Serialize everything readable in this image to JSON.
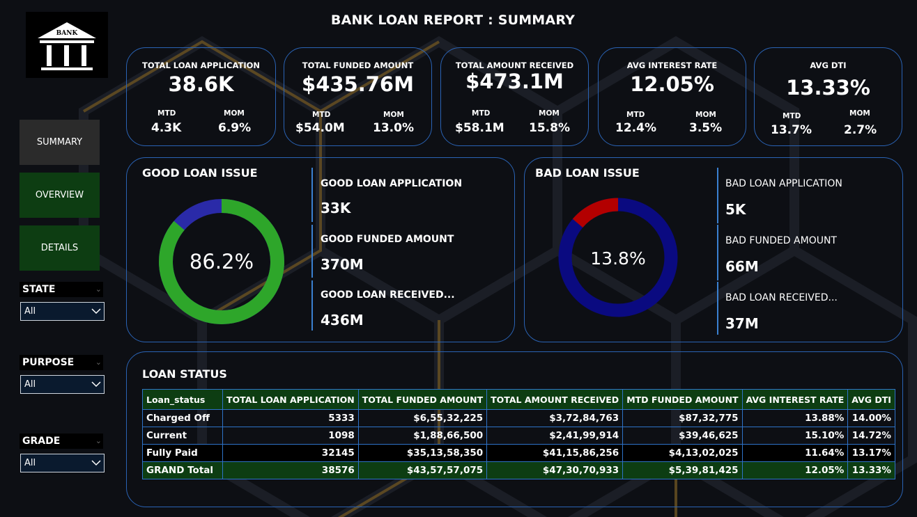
{
  "report": {
    "title": "BANK LOAN REPORT : SUMMARY",
    "logo_text": "BANK"
  },
  "nav": {
    "summary": "SUMMARY",
    "overview": "OVERVIEW",
    "details": "DETAILS"
  },
  "filters": [
    {
      "label": "STATE",
      "value": "All"
    },
    {
      "label": "PURPOSE",
      "value": "All"
    },
    {
      "label": "GRADE",
      "value": "All"
    }
  ],
  "kpis": [
    {
      "title": "TOTAL LOAN APPLICATION",
      "value": "38.6K",
      "mtd_label": "MTD",
      "mtd": "4.3K",
      "mom_label": "MOM",
      "mom": "6.9%"
    },
    {
      "title": "TOTAL FUNDED AMOUNT",
      "value": "$435.76M",
      "mtd_label": "MTD",
      "mtd": "$54.0M",
      "mom_label": "MOM",
      "mom": "13.0%"
    },
    {
      "title": "TOTAL AMOUNT RECEIVED",
      "value": "$473.1M",
      "mtd_label": "MTD",
      "mtd": "$58.1M",
      "mom_label": "MOM",
      "mom": "15.8%"
    },
    {
      "title": "AVG INTEREST RATE",
      "value": "12.05%",
      "mtd_label": "MTD",
      "mtd": "12.4%",
      "mom_label": "MOM",
      "mom": "3.5%"
    },
    {
      "title": "AVG DTI",
      "value": "13.33%",
      "mtd_label": "MTD",
      "mtd": "13.7%",
      "mom_label": "MOM",
      "mom": "2.7%"
    }
  ],
  "good_loan": {
    "title": "GOOD LOAN ISSUE",
    "percent_label": "86.2%",
    "percent": 86.2,
    "colors": {
      "main": "#2ea62a",
      "rest": "#2a2aa8"
    },
    "metrics": [
      {
        "label": "GOOD LOAN APPLICATION",
        "value": "33K"
      },
      {
        "label": "GOOD FUNDED AMOUNT",
        "value": "370M"
      },
      {
        "label": "GOOD LOAN RECEIVED...",
        "value": "436M"
      }
    ]
  },
  "bad_loan": {
    "title": "BAD LOAN ISSUE",
    "percent_label": "13.8%",
    "percent": 13.8,
    "colors": {
      "main": "#b30000",
      "rest": "#0a0a80"
    },
    "metrics": [
      {
        "label": "BAD LOAN APPLICATION",
        "value": "5K"
      },
      {
        "label": "BAD FUNDED AMOUNT",
        "value": "66M"
      },
      {
        "label": "BAD LOAN RECEIVED...",
        "value": "37M"
      }
    ]
  },
  "loan_status": {
    "title": "LOAN STATUS",
    "columns": [
      "Loan_status",
      "TOTAL LOAN APPLICATION",
      "TOTAL FUNDED AMOUNT",
      "TOTAL AMOUNT RECEIVED",
      "MTD FUNDED AMOUNT",
      "AVG INTEREST RATE",
      "AVG DTI"
    ],
    "rows": [
      [
        "Charged Off",
        "5333",
        "$6,55,32,225",
        "$3,72,84,763",
        "$87,32,775",
        "13.88%",
        "14.00%"
      ],
      [
        "Current",
        "1098",
        "$1,88,66,500",
        "$2,41,99,914",
        "$39,46,625",
        "15.10%",
        "14.72%"
      ],
      [
        "Fully Paid",
        "32145",
        "$35,13,58,350",
        "$41,15,86,256",
        "$4,13,02,025",
        "11.64%",
        "13.17%"
      ]
    ],
    "total": [
      "GRAND Total",
      "38576",
      "$43,57,57,075",
      "$47,30,70,933",
      "$5,39,81,425",
      "12.05%",
      "13.33%"
    ]
  },
  "theme": {
    "background": "#0d0f14",
    "card_border": "#2a63b5",
    "accent_gold": "#8a6a2a",
    "table_header": "#0d3d12"
  }
}
